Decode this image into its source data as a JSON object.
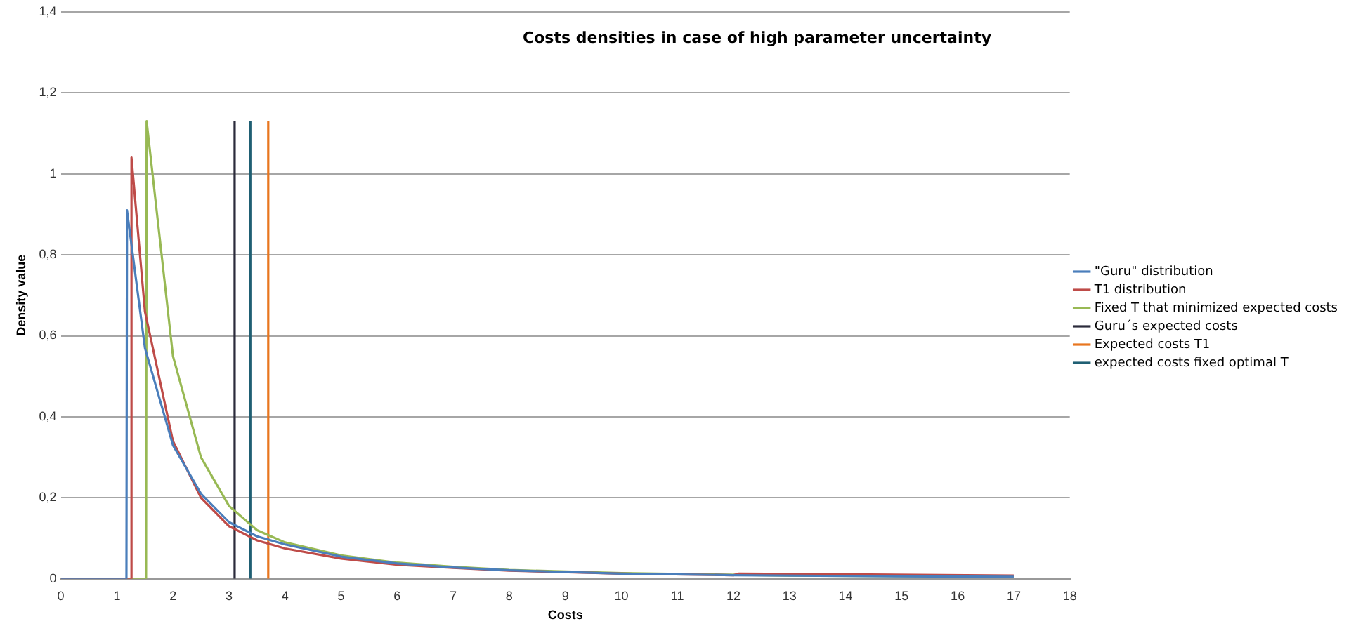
{
  "chart_data": {
    "type": "line",
    "title": "Costs densities in case of high parameter uncertainty",
    "xlabel": "Costs",
    "ylabel": "Density value",
    "xlim": [
      0,
      18
    ],
    "ylim": [
      0,
      1.4
    ],
    "xticks": [
      0,
      1,
      2,
      3,
      4,
      5,
      6,
      7,
      8,
      9,
      10,
      11,
      12,
      13,
      14,
      15,
      16,
      17,
      18
    ],
    "yticks": [
      0,
      {
        "value": 0.2,
        "label": "0,2"
      },
      {
        "value": 0.4,
        "label": "0,4"
      },
      {
        "value": 0.6,
        "label": "0,6"
      },
      {
        "value": 0.8,
        "label": "0,8"
      },
      1,
      {
        "value": 1.2,
        "label": "1,2"
      },
      {
        "value": 1.4,
        "label": "1,4"
      }
    ],
    "grid": "y",
    "legend": "right",
    "marker": "none",
    "series": [
      {
        "name": "\"Guru\" distribution",
        "color": "#4a7ebb",
        "x": [
          0,
          1.17,
          1.18,
          1.5,
          2,
          2.5,
          3,
          3.5,
          4,
          5,
          6,
          7,
          8,
          10,
          12,
          14,
          17
        ],
        "values": [
          0,
          0,
          0.91,
          0.57,
          0.33,
          0.21,
          0.14,
          0.105,
          0.085,
          0.055,
          0.038,
          0.028,
          0.021,
          0.013,
          0.009,
          0.007,
          0.005
        ]
      },
      {
        "name": "T1 distribution",
        "color": "#be4b48",
        "x": [
          0,
          1.25,
          1.26,
          1.5,
          2,
          2.5,
          3,
          3.5,
          4,
          5,
          6,
          7,
          8,
          10,
          12,
          12.1,
          14,
          17
        ],
        "values": [
          0,
          0,
          1.04,
          0.66,
          0.34,
          0.2,
          0.13,
          0.095,
          0.075,
          0.05,
          0.035,
          0.027,
          0.02,
          0.013,
          0.009,
          0.013,
          0.011,
          0.008
        ]
      },
      {
        "name": "Fixed T that minimized expected costs",
        "color": "#98b954",
        "x": [
          0,
          1.52,
          1.53,
          2,
          2.5,
          3,
          3.5,
          4,
          5,
          6,
          7,
          8,
          10,
          13,
          17
        ],
        "values": [
          0,
          0,
          1.13,
          0.55,
          0.3,
          0.18,
          0.12,
          0.09,
          0.058,
          0.04,
          0.03,
          0.022,
          0.014,
          0.008,
          0.005
        ]
      },
      {
        "name": "Guru´s expected costs",
        "color": "#2b2b3b",
        "x": [
          3.1,
          3.1
        ],
        "values": [
          0,
          1.13
        ]
      },
      {
        "name": "Expected costs T1",
        "color": "#e8761f",
        "x": [
          3.7,
          3.7
        ],
        "values": [
          0,
          1.13
        ]
      },
      {
        "name": "expected costs fixed optimal T",
        "color": "#1f5f73",
        "x": [
          3.38,
          3.38
        ],
        "values": [
          0,
          1.13
        ]
      }
    ]
  }
}
